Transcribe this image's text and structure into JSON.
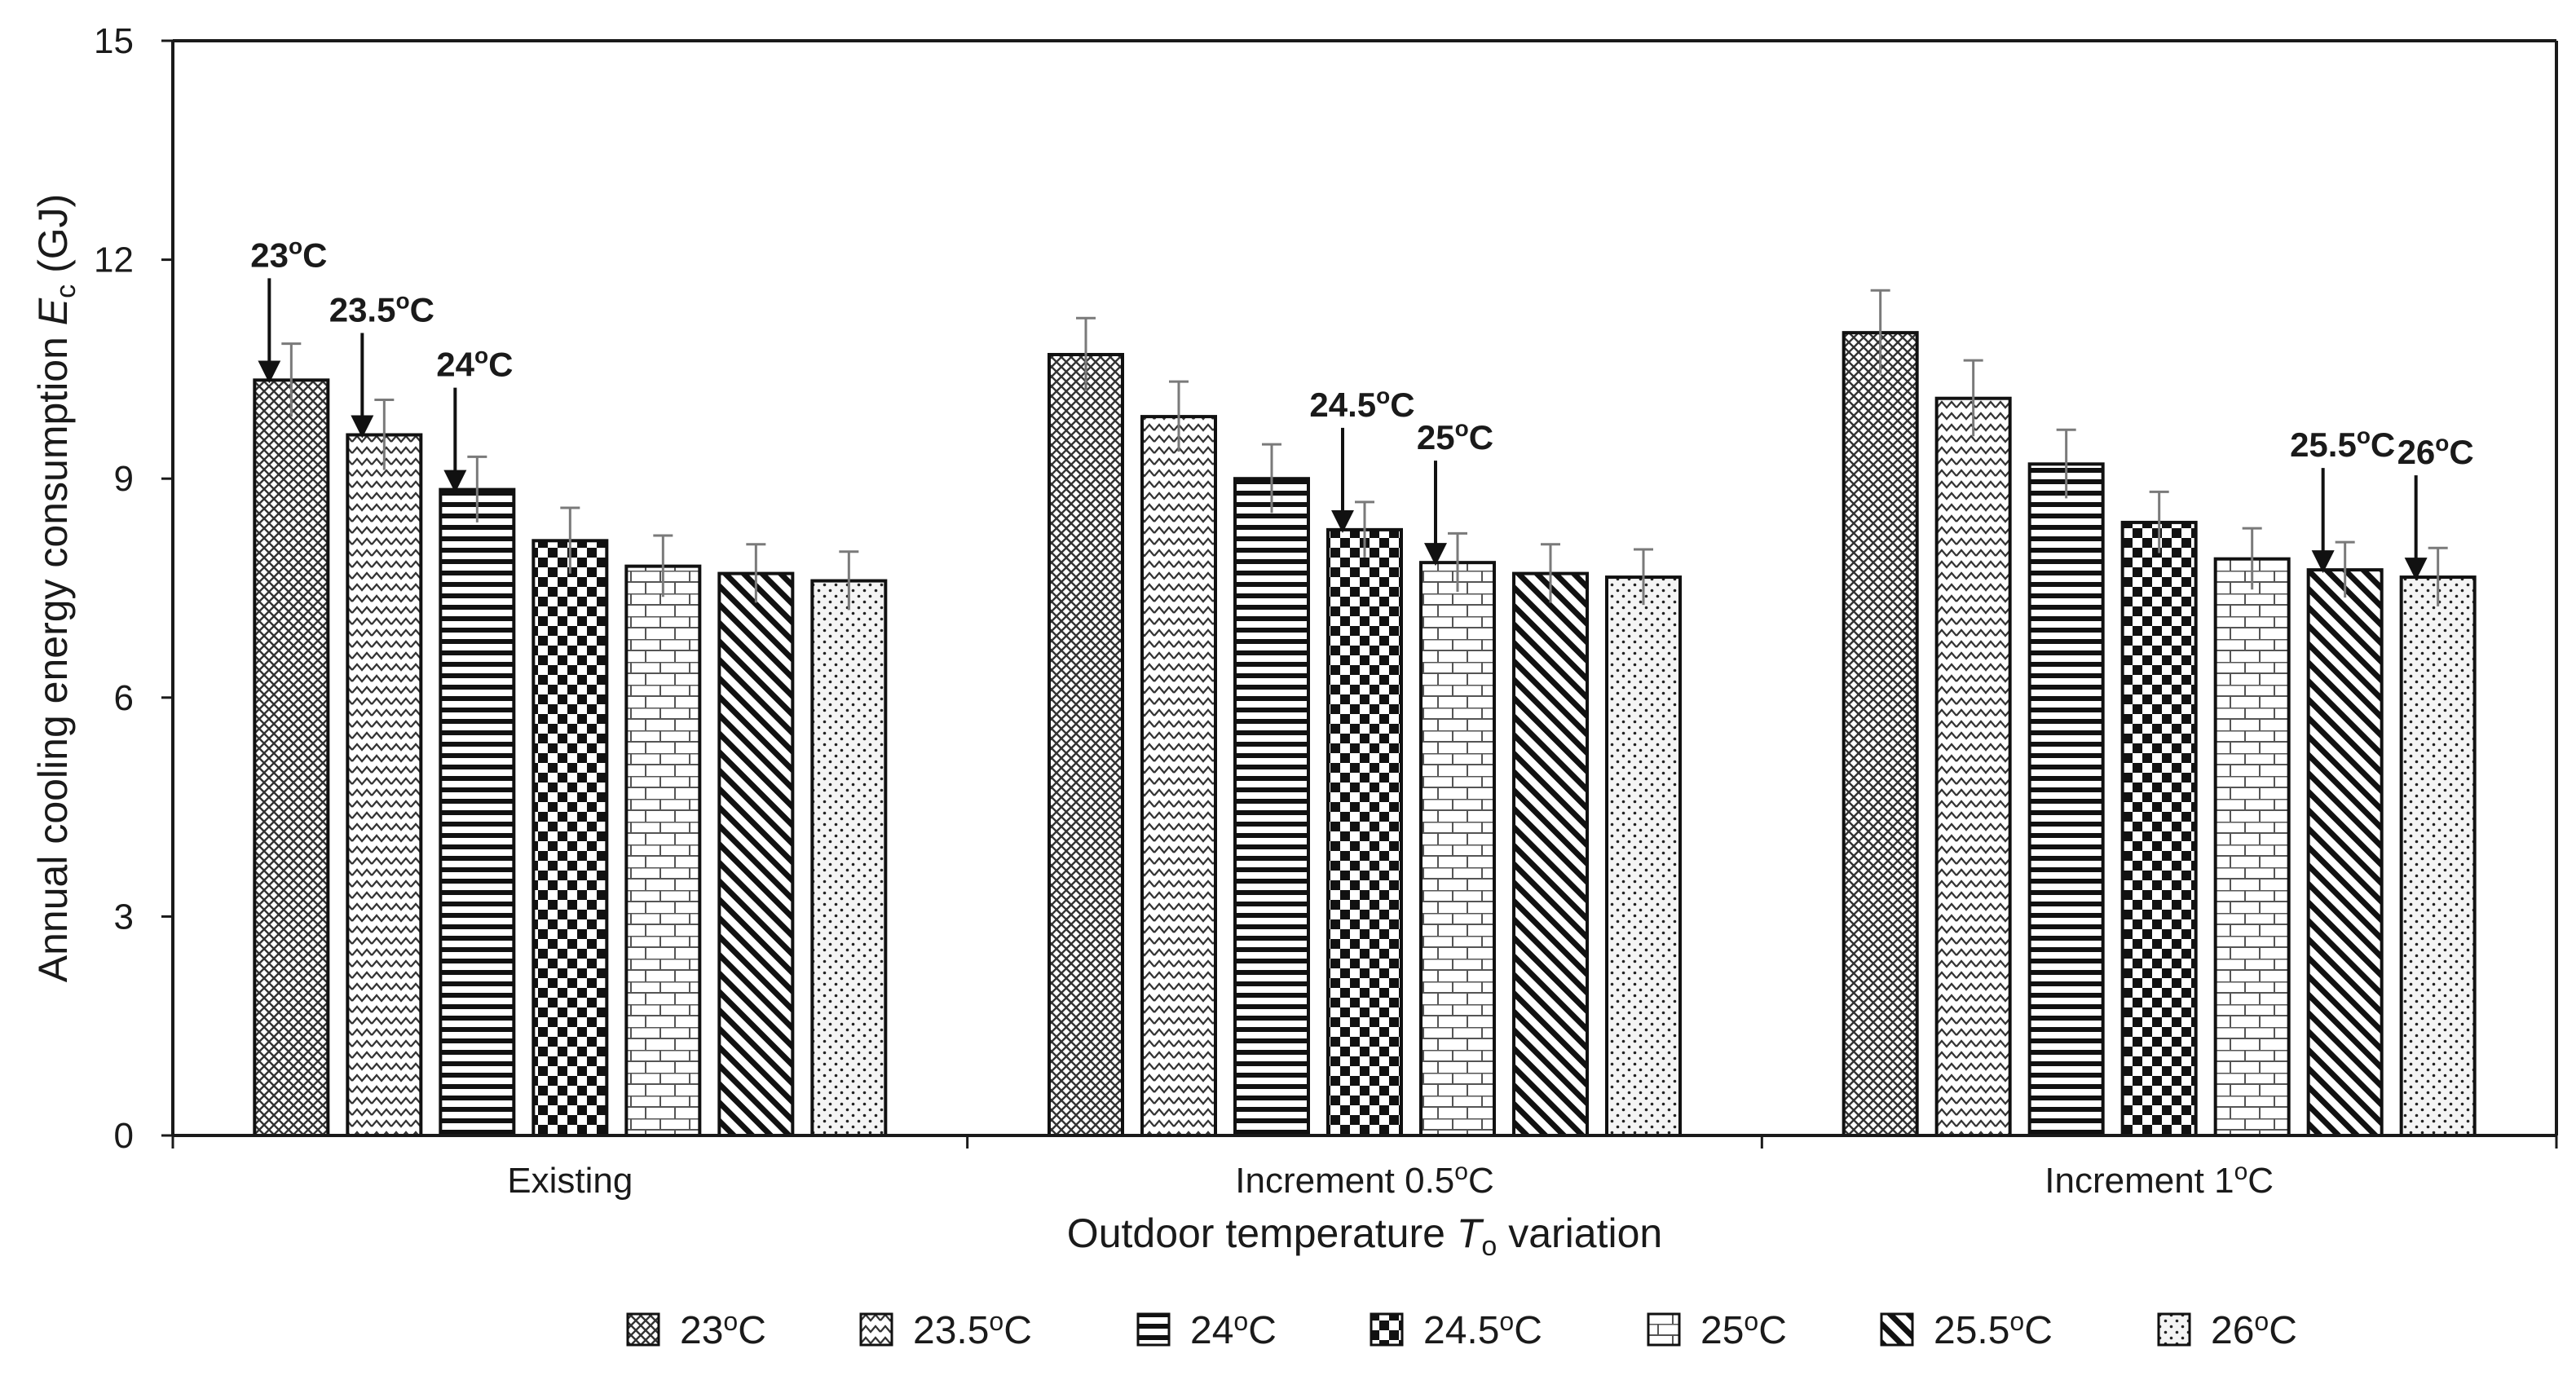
{
  "chart_data": {
    "type": "bar",
    "title": "",
    "xlabel": {
      "pre": "Outdoor temperature ",
      "var": "T",
      "sub": "o",
      "post": " variation"
    },
    "ylabel": {
      "pre": "Annual cooling energy consumption ",
      "var": "E",
      "sub": "c",
      "post": " (GJ)"
    },
    "ylim": [
      0,
      15
    ],
    "yticks": [
      0,
      3,
      6,
      9,
      12,
      15
    ],
    "grid": false,
    "legend_position": "bottom",
    "categories": [
      {
        "pre": "Existing",
        "sup": "",
        "post": ""
      },
      {
        "pre": "Increment 0.5",
        "sup": "o",
        "post": "C"
      },
      {
        "pre": "Increment 1",
        "sup": "o",
        "post": "C"
      }
    ],
    "series": [
      {
        "name": "23",
        "sup": "o",
        "unit": "C",
        "pattern": "crosshatch",
        "values": [
          10.35,
          10.7,
          11.0
        ],
        "errors": [
          0.5,
          0.5,
          0.58
        ]
      },
      {
        "name": "23.5",
        "sup": "o",
        "unit": "C",
        "pattern": "zigzag",
        "values": [
          9.6,
          9.85,
          10.1
        ],
        "errors": [
          0.48,
          0.48,
          0.52
        ]
      },
      {
        "name": "24",
        "sup": "o",
        "unit": "C",
        "pattern": "hlines",
        "values": [
          8.85,
          9.0,
          9.2
        ],
        "errors": [
          0.45,
          0.47,
          0.47
        ]
      },
      {
        "name": "24.5",
        "sup": "o",
        "unit": "C",
        "pattern": "checker",
        "values": [
          8.15,
          8.3,
          8.4
        ],
        "errors": [
          0.45,
          0.38,
          0.42
        ]
      },
      {
        "name": "25",
        "sup": "o",
        "unit": "C",
        "pattern": "brick",
        "values": [
          7.8,
          7.85,
          7.9
        ],
        "errors": [
          0.42,
          0.4,
          0.42
        ]
      },
      {
        "name": "25.5",
        "sup": "o",
        "unit": "C",
        "pattern": "diagonal",
        "values": [
          7.7,
          7.7,
          7.75
        ],
        "errors": [
          0.4,
          0.4,
          0.38
        ]
      },
      {
        "name": "26",
        "sup": "o",
        "unit": "C",
        "pattern": "dots",
        "values": [
          7.6,
          7.65,
          7.65
        ],
        "errors": [
          0.4,
          0.38,
          0.4
        ]
      }
    ],
    "annotations": [
      {
        "pre": "23",
        "sup": "o",
        "post": "C",
        "category": 0,
        "series": 0
      },
      {
        "pre": "23.5",
        "sup": "o",
        "post": "C",
        "category": 0,
        "series": 1
      },
      {
        "pre": "24",
        "sup": "o",
        "post": "C",
        "category": 0,
        "series": 2
      },
      {
        "pre": "24.5",
        "sup": "o",
        "post": "C",
        "category": 1,
        "series": 3
      },
      {
        "pre": "25",
        "sup": "o",
        "post": "C",
        "category": 1,
        "series": 4
      },
      {
        "pre": "25.5",
        "sup": "o",
        "post": "C",
        "category": 2,
        "series": 5
      },
      {
        "pre": "26",
        "sup": "o",
        "post": "C",
        "category": 2,
        "series": 6
      }
    ],
    "colors": {
      "axis": "#1a1a1a",
      "bar_stroke": "#111111",
      "error_bar": "#7a7a7a",
      "background": "#ffffff"
    }
  }
}
